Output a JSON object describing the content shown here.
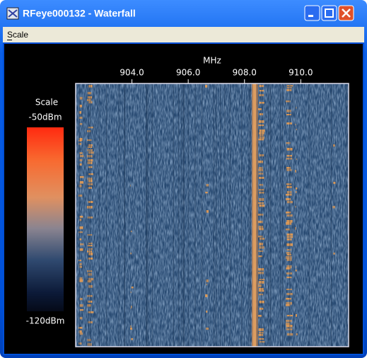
{
  "window": {
    "title": "RFeye000132 - Waterfall"
  },
  "menu": [
    "Scale"
  ],
  "waterfall": {
    "axis_label": "MHz",
    "xlim": [
      902.0,
      911.7
    ],
    "xticks": [
      {
        "value": 904,
        "label": "904.0"
      },
      {
        "value": 906,
        "label": "906.0"
      },
      {
        "value": 908,
        "label": "908.0"
      },
      {
        "value": 910,
        "label": "910.0"
      }
    ],
    "scale": {
      "title": "Scale",
      "max_label": "-50dBm",
      "min_label": "-120dBm"
    }
  }
}
